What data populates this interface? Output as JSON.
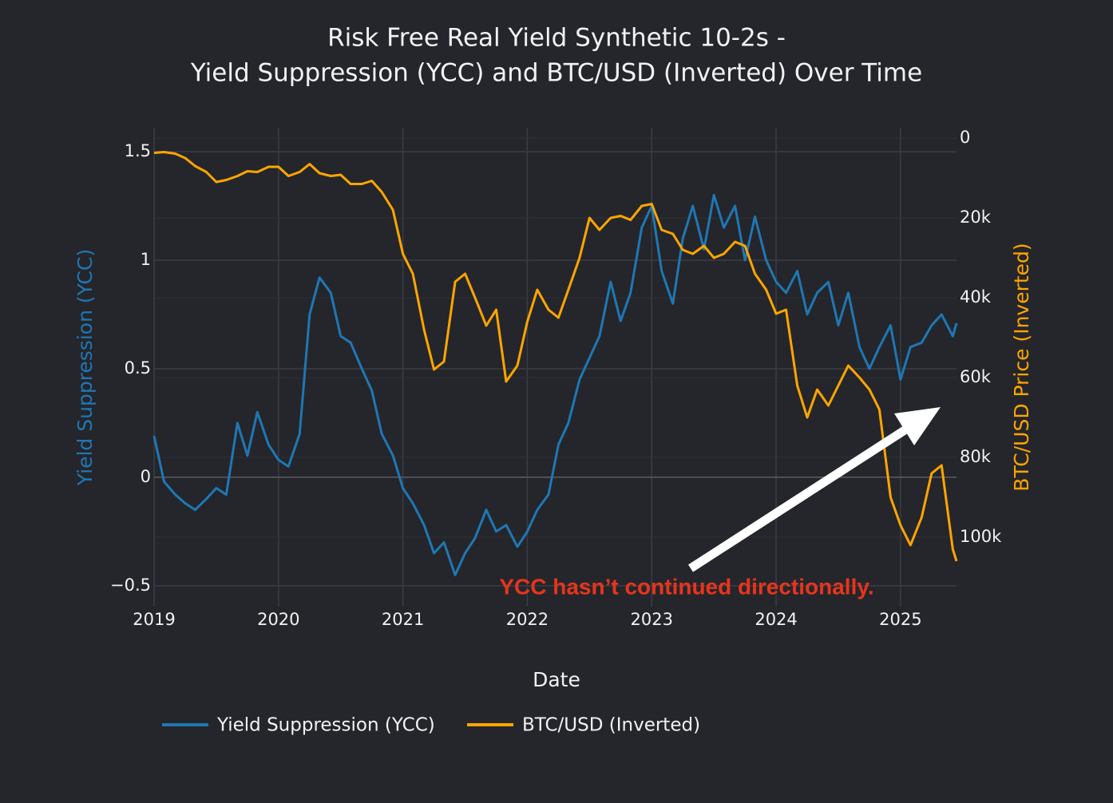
{
  "chart_data": {
    "type": "line",
    "title": "Risk Free Real Yield Synthetic 10-2s -",
    "subtitle": "Yield Suppression (YCC) and BTC/USD (Inverted) Over Time",
    "x_label": "Date",
    "y_label": "Yield Suppression (YCC)",
    "y2_label": "BTC/USD Price (Inverted)",
    "annotation": "YCC hasn’t continued directionally.",
    "x": [
      2019.0,
      2019.08,
      2019.17,
      2019.25,
      2019.33,
      2019.42,
      2019.5,
      2019.58,
      2019.67,
      2019.75,
      2019.83,
      2019.92,
      2020.0,
      2020.08,
      2020.17,
      2020.25,
      2020.33,
      2020.42,
      2020.5,
      2020.58,
      2020.67,
      2020.75,
      2020.83,
      2020.92,
      2021.0,
      2021.08,
      2021.17,
      2021.25,
      2021.33,
      2021.42,
      2021.5,
      2021.58,
      2021.67,
      2021.75,
      2021.83,
      2021.92,
      2022.0,
      2022.08,
      2022.17,
      2022.25,
      2022.33,
      2022.42,
      2022.5,
      2022.58,
      2022.67,
      2022.75,
      2022.83,
      2022.92,
      2023.0,
      2023.08,
      2023.17,
      2023.25,
      2023.33,
      2023.42,
      2023.5,
      2023.58,
      2023.67,
      2023.75,
      2023.83,
      2023.92,
      2024.0,
      2024.08,
      2024.17,
      2024.25,
      2024.33,
      2024.42,
      2024.5,
      2024.58,
      2024.67,
      2024.75,
      2024.83,
      2024.92,
      2025.0,
      2025.08,
      2025.17,
      2025.25,
      2025.33,
      2025.42,
      2025.45
    ],
    "xlim": [
      2019,
      2025.45
    ],
    "xticks": [
      2019,
      2020,
      2021,
      2022,
      2023,
      2024,
      2025
    ],
    "ylim": [
      -0.596,
      1.5625
    ],
    "yticks": [
      {
        "value": -0.5,
        "label": "−0.5"
      },
      0,
      0.5,
      1,
      1.5
    ],
    "y2lim": [
      117400,
      0
    ],
    "y2ticks": [
      0,
      {
        "value": 20000,
        "label": "20k"
      },
      {
        "value": 40000,
        "label": "40k"
      },
      {
        "value": 60000,
        "label": "60k"
      },
      {
        "value": 80000,
        "label": "80k"
      },
      {
        "value": 100000,
        "label": "100k"
      }
    ],
    "grid": true,
    "series": [
      {
        "name": "Yield Suppression (YCC)",
        "color": "#1f77b4",
        "axis": "y",
        "values": [
          0.19,
          -0.02,
          -0.08,
          -0.12,
          -0.15,
          -0.1,
          -0.05,
          -0.08,
          0.25,
          0.1,
          0.3,
          0.15,
          0.08,
          0.05,
          0.2,
          0.75,
          0.92,
          0.85,
          0.65,
          0.62,
          0.5,
          0.4,
          0.2,
          0.1,
          -0.05,
          -0.12,
          -0.22,
          -0.35,
          -0.3,
          -0.45,
          -0.35,
          -0.28,
          -0.15,
          -0.25,
          -0.22,
          -0.32,
          -0.25,
          -0.15,
          -0.08,
          0.15,
          0.25,
          0.45,
          0.55,
          0.65,
          0.9,
          0.72,
          0.85,
          1.15,
          1.25,
          0.95,
          0.8,
          1.1,
          1.25,
          1.05,
          1.3,
          1.15,
          1.25,
          1.0,
          1.2,
          1.0,
          0.9,
          0.85,
          0.95,
          0.75,
          0.85,
          0.9,
          0.7,
          0.85,
          0.6,
          0.5,
          0.6,
          0.7,
          0.45,
          0.6,
          0.62,
          0.7,
          0.75,
          0.65,
          0.71
        ]
      },
      {
        "name": "BTC/USD (Inverted)",
        "color": "#ffa500",
        "axis": "y2",
        "values": [
          3700,
          3500,
          3900,
          5000,
          7000,
          8500,
          11000,
          10500,
          9500,
          8300,
          8500,
          7200,
          7200,
          9500,
          8500,
          6500,
          8800,
          9500,
          9200,
          11500,
          11500,
          10700,
          13500,
          18000,
          29000,
          34000,
          48000,
          58000,
          56000,
          36000,
          34000,
          40000,
          47000,
          43000,
          61000,
          57000,
          46000,
          38000,
          43000,
          45000,
          38000,
          30000,
          20000,
          23000,
          20000,
          19500,
          20500,
          17000,
          16500,
          23000,
          24000,
          28000,
          29000,
          27000,
          30000,
          29000,
          26000,
          27000,
          34000,
          38000,
          44000,
          43000,
          62000,
          70000,
          63000,
          67000,
          62000,
          57000,
          60000,
          63000,
          68000,
          90000,
          97000,
          102000,
          95000,
          84000,
          82000,
          103000,
          106000
        ]
      }
    ]
  }
}
